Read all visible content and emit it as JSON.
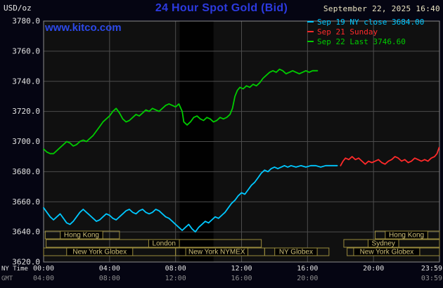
{
  "header": {
    "unit_label": "USD/oz",
    "title": "24 Hour Spot Gold (Bid)",
    "datetime": "September 22, 2025 16:40",
    "watermark": "www.kitco.com",
    "legend": [
      {
        "label": "Sep 19 NY close 3684.00",
        "color": "#00c8ff"
      },
      {
        "label": "Sep 21 Sunday",
        "color": "#ff2a2a"
      },
      {
        "label": "Sep 22 Last 3746.60",
        "color": "#00cc00"
      }
    ]
  },
  "chart_data": {
    "type": "line",
    "title": "24 Hour Spot Gold (Bid)",
    "ylabel": "USD/oz",
    "grid": true,
    "legend_position": "top-right",
    "y_axis": {
      "min": 3620,
      "max": 3780,
      "step": 20,
      "tick_labels": [
        "3780.0",
        "3760.0",
        "3740.0",
        "3720.0",
        "3700.0",
        "3680.0",
        "3660.0",
        "3640.0",
        "3620.0"
      ]
    },
    "x_axis": {
      "name_label": "NY Time",
      "ticks_hours": [
        0,
        4,
        8,
        12,
        16,
        20,
        24
      ],
      "tick_labels": [
        "00:00",
        "04:00",
        "08:00",
        "12:00",
        "16:00",
        "20:00",
        "23:59"
      ]
    },
    "gmt_axis": {
      "name_label": "GMT",
      "ticks_hours": [
        0,
        4,
        8,
        12,
        16,
        24
      ],
      "tick_labels": [
        "04:00",
        "08:00",
        "12:00",
        "16:00",
        "20:00",
        "03:59"
      ]
    },
    "shaded_bands_hours": [
      [
        8.25,
        10.3
      ]
    ],
    "series": [
      {
        "name": "Sep 19 NY close",
        "close_value": 3684.0,
        "color": "#00c8ff",
        "points": [
          [
            0,
            3656
          ],
          [
            0.2,
            3653
          ],
          [
            0.4,
            3650
          ],
          [
            0.6,
            3648
          ],
          [
            0.8,
            3650
          ],
          [
            1,
            3652
          ],
          [
            1.2,
            3649
          ],
          [
            1.4,
            3646
          ],
          [
            1.6,
            3645
          ],
          [
            1.8,
            3647
          ],
          [
            2,
            3650
          ],
          [
            2.2,
            3653
          ],
          [
            2.4,
            3655
          ],
          [
            2.6,
            3653
          ],
          [
            2.8,
            3651
          ],
          [
            3,
            3649
          ],
          [
            3.2,
            3647
          ],
          [
            3.4,
            3648
          ],
          [
            3.6,
            3650
          ],
          [
            3.8,
            3652
          ],
          [
            4,
            3651
          ],
          [
            4.2,
            3649
          ],
          [
            4.4,
            3648
          ],
          [
            4.6,
            3650
          ],
          [
            4.8,
            3652
          ],
          [
            5,
            3654
          ],
          [
            5.2,
            3655
          ],
          [
            5.4,
            3653
          ],
          [
            5.6,
            3652
          ],
          [
            5.8,
            3654
          ],
          [
            6,
            3655
          ],
          [
            6.2,
            3653
          ],
          [
            6.4,
            3652
          ],
          [
            6.6,
            3653
          ],
          [
            6.8,
            3655
          ],
          [
            7,
            3654
          ],
          [
            7.2,
            3652
          ],
          [
            7.4,
            3650
          ],
          [
            7.6,
            3649
          ],
          [
            7.8,
            3647
          ],
          [
            8,
            3645
          ],
          [
            8.2,
            3643
          ],
          [
            8.4,
            3641
          ],
          [
            8.6,
            3643
          ],
          [
            8.8,
            3645
          ],
          [
            9,
            3642
          ],
          [
            9.2,
            3640
          ],
          [
            9.4,
            3643
          ],
          [
            9.6,
            3645
          ],
          [
            9.8,
            3647
          ],
          [
            10,
            3646
          ],
          [
            10.2,
            3648
          ],
          [
            10.4,
            3650
          ],
          [
            10.6,
            3649
          ],
          [
            10.8,
            3651
          ],
          [
            11,
            3653
          ],
          [
            11.2,
            3656
          ],
          [
            11.4,
            3659
          ],
          [
            11.6,
            3661
          ],
          [
            11.8,
            3664
          ],
          [
            12,
            3666
          ],
          [
            12.2,
            3665
          ],
          [
            12.4,
            3668
          ],
          [
            12.6,
            3671
          ],
          [
            12.8,
            3673
          ],
          [
            13,
            3676
          ],
          [
            13.2,
            3679
          ],
          [
            13.4,
            3681
          ],
          [
            13.6,
            3680
          ],
          [
            13.8,
            3682
          ],
          [
            14,
            3683
          ],
          [
            14.2,
            3682
          ],
          [
            14.4,
            3683
          ],
          [
            14.6,
            3684
          ],
          [
            14.8,
            3683
          ],
          [
            15,
            3684
          ],
          [
            15.3,
            3683
          ],
          [
            15.6,
            3684
          ],
          [
            15.9,
            3683
          ],
          [
            16.2,
            3684
          ],
          [
            16.5,
            3684
          ],
          [
            16.8,
            3683
          ],
          [
            17.1,
            3684
          ],
          [
            17.5,
            3684
          ],
          [
            17.8,
            3684
          ]
        ]
      },
      {
        "name": "Sep 21 Sunday",
        "color": "#ff2a2a",
        "points": [
          [
            18,
            3684
          ],
          [
            18.15,
            3687
          ],
          [
            18.3,
            3689
          ],
          [
            18.5,
            3688
          ],
          [
            18.7,
            3690
          ],
          [
            18.9,
            3688
          ],
          [
            19.1,
            3689
          ],
          [
            19.3,
            3687
          ],
          [
            19.5,
            3685
          ],
          [
            19.7,
            3687
          ],
          [
            19.9,
            3686
          ],
          [
            20.1,
            3687
          ],
          [
            20.3,
            3688
          ],
          [
            20.5,
            3686
          ],
          [
            20.7,
            3685
          ],
          [
            20.9,
            3687
          ],
          [
            21.1,
            3688
          ],
          [
            21.3,
            3690
          ],
          [
            21.5,
            3689
          ],
          [
            21.7,
            3687
          ],
          [
            21.9,
            3688
          ],
          [
            22.1,
            3686
          ],
          [
            22.3,
            3687
          ],
          [
            22.5,
            3689
          ],
          [
            22.7,
            3688
          ],
          [
            22.9,
            3687
          ],
          [
            23.1,
            3688
          ],
          [
            23.3,
            3687
          ],
          [
            23.5,
            3689
          ],
          [
            23.7,
            3690
          ],
          [
            23.85,
            3692
          ],
          [
            23.98,
            3696
          ]
        ]
      },
      {
        "name": "Sep 22 Last",
        "last_value": 3746.6,
        "color": "#00cc00",
        "points": [
          [
            0,
            3695
          ],
          [
            0.2,
            3693
          ],
          [
            0.4,
            3692
          ],
          [
            0.6,
            3692
          ],
          [
            0.8,
            3694
          ],
          [
            1,
            3696
          ],
          [
            1.2,
            3698
          ],
          [
            1.4,
            3700
          ],
          [
            1.6,
            3699
          ],
          [
            1.8,
            3697
          ],
          [
            2,
            3698
          ],
          [
            2.2,
            3700
          ],
          [
            2.4,
            3701
          ],
          [
            2.6,
            3700
          ],
          [
            2.8,
            3702
          ],
          [
            3,
            3704
          ],
          [
            3.2,
            3707
          ],
          [
            3.4,
            3710
          ],
          [
            3.6,
            3713
          ],
          [
            3.8,
            3715
          ],
          [
            4,
            3717
          ],
          [
            4.2,
            3720
          ],
          [
            4.4,
            3722
          ],
          [
            4.6,
            3719
          ],
          [
            4.8,
            3715
          ],
          [
            5,
            3713
          ],
          [
            5.2,
            3714
          ],
          [
            5.4,
            3716
          ],
          [
            5.6,
            3718
          ],
          [
            5.8,
            3717
          ],
          [
            6,
            3719
          ],
          [
            6.2,
            3721
          ],
          [
            6.4,
            3720
          ],
          [
            6.6,
            3722
          ],
          [
            6.8,
            3721
          ],
          [
            7,
            3720
          ],
          [
            7.2,
            3722
          ],
          [
            7.4,
            3724
          ],
          [
            7.6,
            3725
          ],
          [
            7.8,
            3724
          ],
          [
            8,
            3723
          ],
          [
            8.2,
            3725
          ],
          [
            8.4,
            3720
          ],
          [
            8.5,
            3713
          ],
          [
            8.7,
            3711
          ],
          [
            8.9,
            3713
          ],
          [
            9.1,
            3716
          ],
          [
            9.3,
            3717
          ],
          [
            9.5,
            3715
          ],
          [
            9.7,
            3714
          ],
          [
            9.9,
            3716
          ],
          [
            10.1,
            3715
          ],
          [
            10.3,
            3713
          ],
          [
            10.5,
            3714
          ],
          [
            10.7,
            3716
          ],
          [
            10.9,
            3715
          ],
          [
            11.1,
            3716
          ],
          [
            11.3,
            3718
          ],
          [
            11.45,
            3722
          ],
          [
            11.6,
            3730
          ],
          [
            11.75,
            3734
          ],
          [
            11.9,
            3736
          ],
          [
            12.1,
            3735
          ],
          [
            12.3,
            3737
          ],
          [
            12.5,
            3736
          ],
          [
            12.7,
            3738
          ],
          [
            12.9,
            3737
          ],
          [
            13.1,
            3739
          ],
          [
            13.3,
            3742
          ],
          [
            13.5,
            3744
          ],
          [
            13.7,
            3746
          ],
          [
            13.9,
            3747
          ],
          [
            14.1,
            3746
          ],
          [
            14.3,
            3748
          ],
          [
            14.5,
            3747
          ],
          [
            14.7,
            3745
          ],
          [
            14.9,
            3746
          ],
          [
            15.1,
            3747
          ],
          [
            15.3,
            3746
          ],
          [
            15.5,
            3745
          ],
          [
            15.7,
            3746
          ],
          [
            15.9,
            3747
          ],
          [
            16.1,
            3746
          ],
          [
            16.3,
            3747
          ],
          [
            16.6,
            3747
          ]
        ]
      }
    ],
    "sessions": [
      {
        "label": "Hong Kong",
        "row": 0,
        "start": 0.1,
        "end": 4.6,
        "label_center": 2.3
      },
      {
        "label": "Hong Kong",
        "row": 0,
        "start": 20.1,
        "end": 24,
        "label_center": 22
      },
      {
        "label": "London",
        "row": 1,
        "start": 0.15,
        "end": 13.2,
        "label_center": 7.3
      },
      {
        "label": "Sydney",
        "row": 1,
        "start": 18.2,
        "end": 24,
        "label_center": 20.6
      },
      {
        "label": "New York Globex",
        "row": 2,
        "start": 0,
        "end": 8.0,
        "label_center": 3.4
      },
      {
        "label": "New York NYMEX",
        "row": 2,
        "start": 8.0,
        "end": 13.4,
        "label_center": 10.5
      },
      {
        "label": "NY Globex",
        "row": 2,
        "start": 13.4,
        "end": 17.3,
        "label_center": 15.3
      },
      {
        "label": "New York Globex",
        "row": 2,
        "start": 18.4,
        "end": 24,
        "label_center": 20.8
      }
    ]
  }
}
